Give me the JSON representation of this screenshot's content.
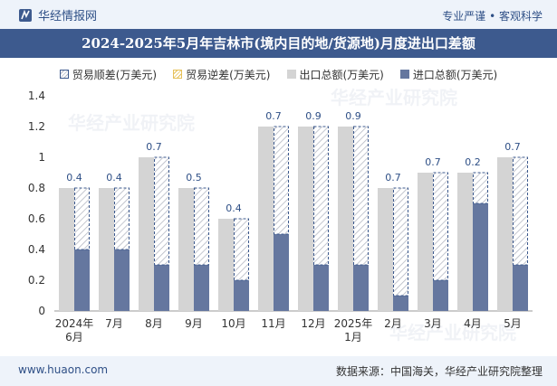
{
  "header": {
    "brand": "华经情报网",
    "tagline": "专业严谨 • 客观科学"
  },
  "title": "2024-2025年5月年吉林市(境内目的地/货源地)月度进出口差额",
  "legend": {
    "surplus": "贸易顺差(万美元)",
    "deficit": "贸易逆差(万美元)",
    "export": "出口总额(万美元)",
    "import": "进口总额(万美元)"
  },
  "watermark": "华经产业研究院",
  "footer": {
    "website": "www.huaon.com",
    "source": "数据来源：中国海关，华经产业研究院整理"
  },
  "colors": {
    "export": "#d4d4d4",
    "import": "#65779f",
    "surplus_border": "#3d5a8e",
    "title_bg": "#3d5a8e"
  },
  "chart_data": {
    "type": "bar",
    "categories": [
      "2024年\n6月",
      "7月",
      "8月",
      "9月",
      "10月",
      "11月",
      "12月",
      "2025年\n1月",
      "2月",
      "3月",
      "4月",
      "5月"
    ],
    "series": [
      {
        "name": "出口总额(万美元)",
        "values": [
          0.8,
          0.8,
          1.0,
          0.8,
          0.6,
          1.2,
          1.2,
          1.2,
          0.8,
          0.9,
          0.9,
          1.0
        ]
      },
      {
        "name": "进口总额(万美元)",
        "values": [
          0.4,
          0.4,
          0.3,
          0.3,
          0.2,
          0.5,
          0.3,
          0.3,
          0.1,
          0.2,
          0.7,
          0.3
        ]
      },
      {
        "name": "贸易顺差(万美元)",
        "values": [
          0.4,
          0.4,
          0.7,
          0.5,
          0.4,
          0.7,
          0.9,
          0.9,
          0.7,
          0.7,
          0.2,
          0.7
        ]
      },
      {
        "name": "贸易逆差(万美元)",
        "values": [
          0,
          0,
          0,
          0,
          0,
          0,
          0,
          0,
          0,
          0,
          0,
          0
        ]
      }
    ],
    "ylim": [
      0,
      1.4
    ],
    "yticks": [
      "0",
      "0.2",
      "0.4",
      "0.6",
      "0.8",
      "1",
      "1.2",
      "1.4"
    ],
    "grid": false,
    "legend_position": "top"
  }
}
